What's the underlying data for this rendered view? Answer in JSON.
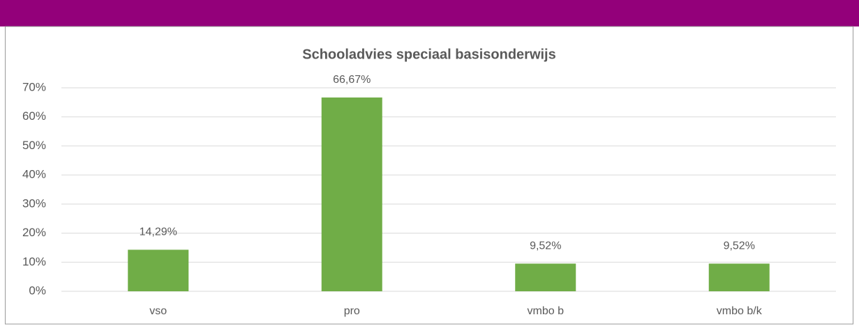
{
  "chart_data": {
    "type": "bar",
    "title": "Schooladvies speciaal basisonderwijs",
    "categories": [
      "vso",
      "pro",
      "vmbo b",
      "vmbo b/k"
    ],
    "values": [
      14.29,
      66.67,
      9.52,
      9.52
    ],
    "value_labels": [
      "14,29%",
      "66,67%",
      "9,52%",
      "9,52%"
    ],
    "color": "#70ad47",
    "ylim": [
      0,
      70
    ],
    "yticks": [
      {
        "value": 0,
        "label": "0%"
      },
      {
        "value": 10,
        "label": "10%"
      },
      {
        "value": 20,
        "label": "20%"
      },
      {
        "value": 30,
        "label": "30%"
      },
      {
        "value": 40,
        "label": "40%"
      },
      {
        "value": 50,
        "label": "50%"
      },
      {
        "value": 60,
        "label": "60%"
      },
      {
        "value": 70,
        "label": "70%"
      }
    ],
    "grid": true
  }
}
